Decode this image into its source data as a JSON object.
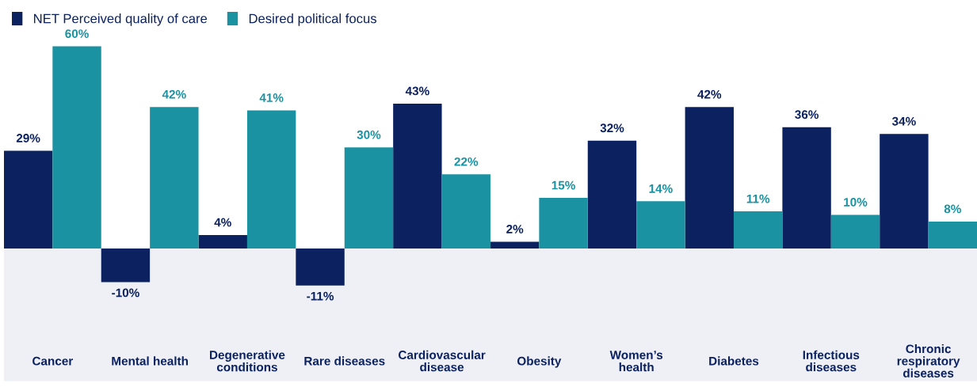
{
  "chart_data": {
    "type": "bar",
    "categories": [
      "Cancer",
      "Mental health",
      "Degenerative\nconditions",
      "Rare diseases",
      "Cardiovascular\ndisease",
      "Obesity",
      "Women’s\nhealth",
      "Diabetes",
      "Infectious\ndiseases",
      "Chronic\nrespiratory\ndiseases"
    ],
    "series": [
      {
        "name": "NET Perceived quality of care",
        "color": "#0b2160",
        "values": [
          29,
          -10,
          4,
          -11,
          43,
          2,
          32,
          42,
          36,
          34
        ],
        "value_labels": [
          "29%",
          "-10%",
          "4%",
          "-11%",
          "43%",
          "2%",
          "32%",
          "42%",
          "36%",
          "34%"
        ]
      },
      {
        "name": "Desired political focus",
        "color": "#1a92a2",
        "values": [
          60,
          42,
          41,
          30,
          22,
          15,
          14,
          11,
          10,
          8
        ],
        "value_labels": [
          "60%",
          "42%",
          "41%",
          "30%",
          "22%",
          "15%",
          "14%",
          "11%",
          "10%",
          "8%"
        ]
      }
    ],
    "legend": "top left"
  }
}
